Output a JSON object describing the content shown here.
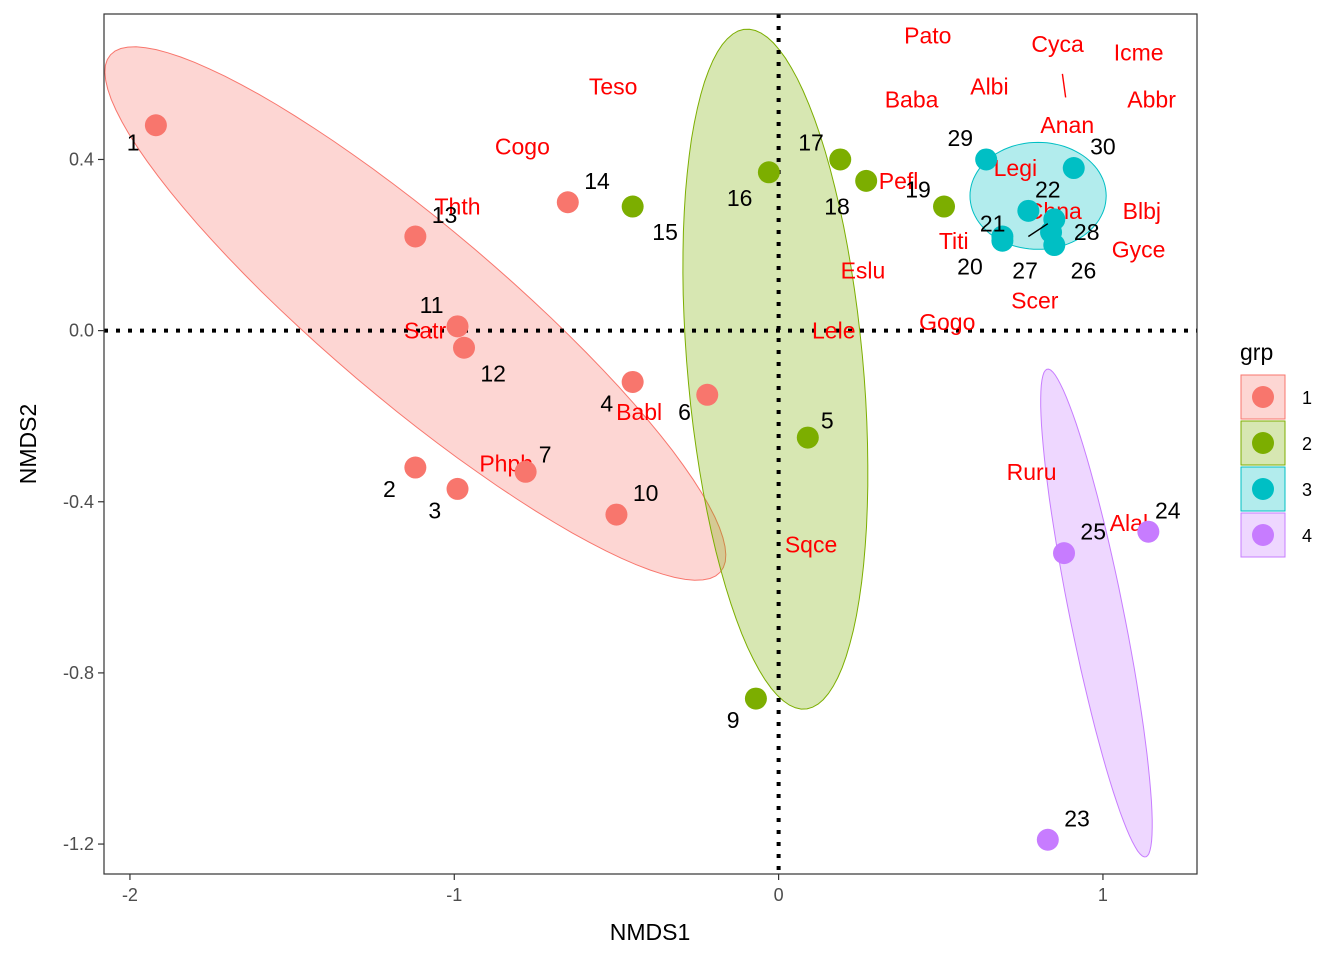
{
  "chart_data": {
    "type": "scatter",
    "xlabel": "NMDS1",
    "ylabel": "NMDS2",
    "xlim": [
      -2.08,
      1.29
    ],
    "ylim": [
      -1.27,
      0.74
    ],
    "x_ticks": [
      -2,
      -1,
      0,
      1
    ],
    "x_tick_labels": [
      "-2",
      "-1",
      "0",
      "1"
    ],
    "y_ticks": [
      0.4,
      0.0,
      -0.4,
      -0.8,
      -1.2
    ],
    "y_tick_labels": [
      "0.4",
      "0.0",
      "-0.4",
      "-0.8",
      "-1.2"
    ],
    "grid": false,
    "reference_lines": [
      {
        "axis": "x",
        "value": 0,
        "style": "dotted"
      },
      {
        "axis": "y",
        "value": 0,
        "style": "dotted"
      }
    ],
    "legend": {
      "title": "grp",
      "placement": "right",
      "items": [
        {
          "label": "1",
          "color": "#F8766D"
        },
        {
          "label": "2",
          "color": "#7CAE00"
        },
        {
          "label": "3",
          "color": "#00BFC4"
        },
        {
          "label": "4",
          "color": "#C77CFF"
        }
      ]
    },
    "groups": [
      {
        "name": "1",
        "color": "#F8766D",
        "fill": "#F8766D",
        "ellipse": {
          "cx": -1.12,
          "cy": 0.04,
          "rx": 1.12,
          "ry": 0.225,
          "angle_deg": -32
        }
      },
      {
        "name": "2",
        "color": "#7CAE00",
        "fill": "#7CAE00",
        "ellipse": {
          "cx": -0.01,
          "cy": -0.09,
          "rx": 0.8,
          "ry": 0.27,
          "angle_deg": -83
        }
      },
      {
        "name": "3",
        "color": "#00BFC4",
        "fill": "#00BFC4",
        "ellipse": {
          "cx": 0.8,
          "cy": 0.315,
          "rx": 0.21,
          "ry": 0.125,
          "angle_deg": 0
        }
      },
      {
        "name": "4",
        "color": "#C77CFF",
        "fill": "#C77CFF",
        "ellipse": {
          "cx": 0.98,
          "cy": -0.66,
          "rx": 0.59,
          "ry": 0.082,
          "angle_deg": -75
        }
      }
    ],
    "sites": [
      {
        "label": "1",
        "grp": "1",
        "x": -1.92,
        "y": 0.48
      },
      {
        "label": "2",
        "grp": "1",
        "x": -1.12,
        "y": -0.32
      },
      {
        "label": "3",
        "grp": "1",
        "x": -0.99,
        "y": -0.37
      },
      {
        "label": "4",
        "grp": "1",
        "x": -0.45,
        "y": -0.12
      },
      {
        "label": "5",
        "grp": "2",
        "x": 0.09,
        "y": -0.25
      },
      {
        "label": "6",
        "grp": "1",
        "x": -0.22,
        "y": -0.15
      },
      {
        "label": "7",
        "grp": "1",
        "x": -0.78,
        "y": -0.33
      },
      {
        "label": "9",
        "grp": "2",
        "x": -0.07,
        "y": -0.86
      },
      {
        "label": "10",
        "grp": "1",
        "x": -0.5,
        "y": -0.43
      },
      {
        "label": "11",
        "grp": "1",
        "x": -0.99,
        "y": 0.01
      },
      {
        "label": "12",
        "grp": "1",
        "x": -0.97,
        "y": -0.04
      },
      {
        "label": "13",
        "grp": "1",
        "x": -1.12,
        "y": 0.22
      },
      {
        "label": "14",
        "grp": "1",
        "x": -0.65,
        "y": 0.3
      },
      {
        "label": "15",
        "grp": "2",
        "x": -0.45,
        "y": 0.29
      },
      {
        "label": "16",
        "grp": "2",
        "x": -0.03,
        "y": 0.37
      },
      {
        "label": "17",
        "grp": "2",
        "x": 0.19,
        "y": 0.4
      },
      {
        "label": "18",
        "grp": "2",
        "x": 0.27,
        "y": 0.35
      },
      {
        "label": "19",
        "grp": "2",
        "x": 0.51,
        "y": 0.29
      },
      {
        "label": "20",
        "grp": "3",
        "x": 0.69,
        "y": 0.21
      },
      {
        "label": "21",
        "grp": "3",
        "x": 0.69,
        "y": 0.22
      },
      {
        "label": "22",
        "grp": "3",
        "x": 0.77,
        "y": 0.28
      },
      {
        "label": "23",
        "grp": "4",
        "x": 0.83,
        "y": -1.19
      },
      {
        "label": "24",
        "grp": "4",
        "x": 1.14,
        "y": -0.47
      },
      {
        "label": "25",
        "grp": "4",
        "x": 0.88,
        "y": -0.52
      },
      {
        "label": "26",
        "grp": "3",
        "x": 0.85,
        "y": 0.2
      },
      {
        "label": "27",
        "grp": "3",
        "x": 0.84,
        "y": 0.23
      },
      {
        "label": "28",
        "grp": "3",
        "x": 0.85,
        "y": 0.26
      },
      {
        "label": "29",
        "grp": "3",
        "x": 0.64,
        "y": 0.4
      },
      {
        "label": "30",
        "grp": "3",
        "x": 0.91,
        "y": 0.38
      }
    ],
    "site_labels": [
      {
        "text": "1",
        "x": -1.99,
        "y": 0.44
      },
      {
        "text": "2",
        "x": -1.2,
        "y": -0.37
      },
      {
        "text": "3",
        "x": -1.06,
        "y": -0.42
      },
      {
        "text": "4",
        "x": -0.53,
        "y": -0.17
      },
      {
        "text": "5",
        "x": 0.15,
        "y": -0.21
      },
      {
        "text": "6",
        "x": -0.29,
        "y": -0.19
      },
      {
        "text": "7",
        "x": -0.72,
        "y": -0.29
      },
      {
        "text": "9",
        "x": -0.14,
        "y": -0.91
      },
      {
        "text": "10",
        "x": -0.41,
        "y": -0.38
      },
      {
        "text": "11",
        "x": -1.07,
        "y": 0.06
      },
      {
        "text": "12",
        "x": -0.88,
        "y": -0.1
      },
      {
        "text": "13",
        "x": -1.03,
        "y": 0.27
      },
      {
        "text": "14",
        "x": -0.56,
        "y": 0.35
      },
      {
        "text": "15",
        "x": -0.35,
        "y": 0.23
      },
      {
        "text": "16",
        "x": -0.12,
        "y": 0.31
      },
      {
        "text": "17",
        "x": 0.1,
        "y": 0.44
      },
      {
        "text": "18",
        "x": 0.18,
        "y": 0.29
      },
      {
        "text": "19",
        "x": 0.43,
        "y": 0.33
      },
      {
        "text": "20",
        "x": 0.59,
        "y": 0.15
      },
      {
        "text": "21",
        "x": 0.66,
        "y": 0.25
      },
      {
        "text": "22",
        "x": 0.83,
        "y": 0.33
      },
      {
        "text": "23",
        "x": 0.92,
        "y": -1.14
      },
      {
        "text": "24",
        "x": 1.2,
        "y": -0.42
      },
      {
        "text": "25",
        "x": 0.97,
        "y": -0.47
      },
      {
        "text": "26",
        "x": 0.94,
        "y": 0.14
      },
      {
        "text": "27",
        "x": 0.76,
        "y": 0.14
      },
      {
        "text": "28",
        "x": 0.95,
        "y": 0.23
      },
      {
        "text": "29",
        "x": 0.56,
        "y": 0.45
      },
      {
        "text": "30",
        "x": 1.0,
        "y": 0.43
      }
    ],
    "species": [
      {
        "name": "Pato",
        "x": 0.46,
        "y": 0.69
      },
      {
        "name": "Cyca",
        "x": 0.86,
        "y": 0.67
      },
      {
        "name": "Icme",
        "x": 1.11,
        "y": 0.65
      },
      {
        "name": "Teso",
        "x": -0.51,
        "y": 0.57
      },
      {
        "name": "Albi",
        "x": 0.65,
        "y": 0.57
      },
      {
        "name": "Baba",
        "x": 0.41,
        "y": 0.54
      },
      {
        "name": "Abbr",
        "x": 1.15,
        "y": 0.54
      },
      {
        "name": "Anan",
        "x": 0.89,
        "y": 0.48
      },
      {
        "name": "Cogo",
        "x": -0.79,
        "y": 0.43
      },
      {
        "name": "Legi",
        "x": 0.73,
        "y": 0.38
      },
      {
        "name": "Pefl",
        "x": 0.37,
        "y": 0.35
      },
      {
        "name": "Thth",
        "x": -0.99,
        "y": 0.29
      },
      {
        "name": "Blbj",
        "x": 1.12,
        "y": 0.28
      },
      {
        "name": "Chna",
        "x": 0.85,
        "y": 0.28
      },
      {
        "name": "Titi",
        "x": 0.54,
        "y": 0.21
      },
      {
        "name": "Gyce",
        "x": 1.11,
        "y": 0.19
      },
      {
        "name": "Eslu",
        "x": 0.26,
        "y": 0.14
      },
      {
        "name": "Scer",
        "x": 0.79,
        "y": 0.07
      },
      {
        "name": "Gogo",
        "x": 0.52,
        "y": 0.02
      },
      {
        "name": "Lele",
        "x": 0.17,
        "y": 0.0
      },
      {
        "name": "Satr",
        "x": -1.09,
        "y": -0.0
      },
      {
        "name": "Babl",
        "x": -0.43,
        "y": -0.19
      },
      {
        "name": "Phph",
        "x": -0.84,
        "y": -0.31
      },
      {
        "name": "Ruru",
        "x": 0.78,
        "y": -0.33
      },
      {
        "name": "Alal",
        "x": 1.08,
        "y": -0.45
      },
      {
        "name": "Sqce",
        "x": 0.1,
        "y": -0.5
      }
    ]
  }
}
